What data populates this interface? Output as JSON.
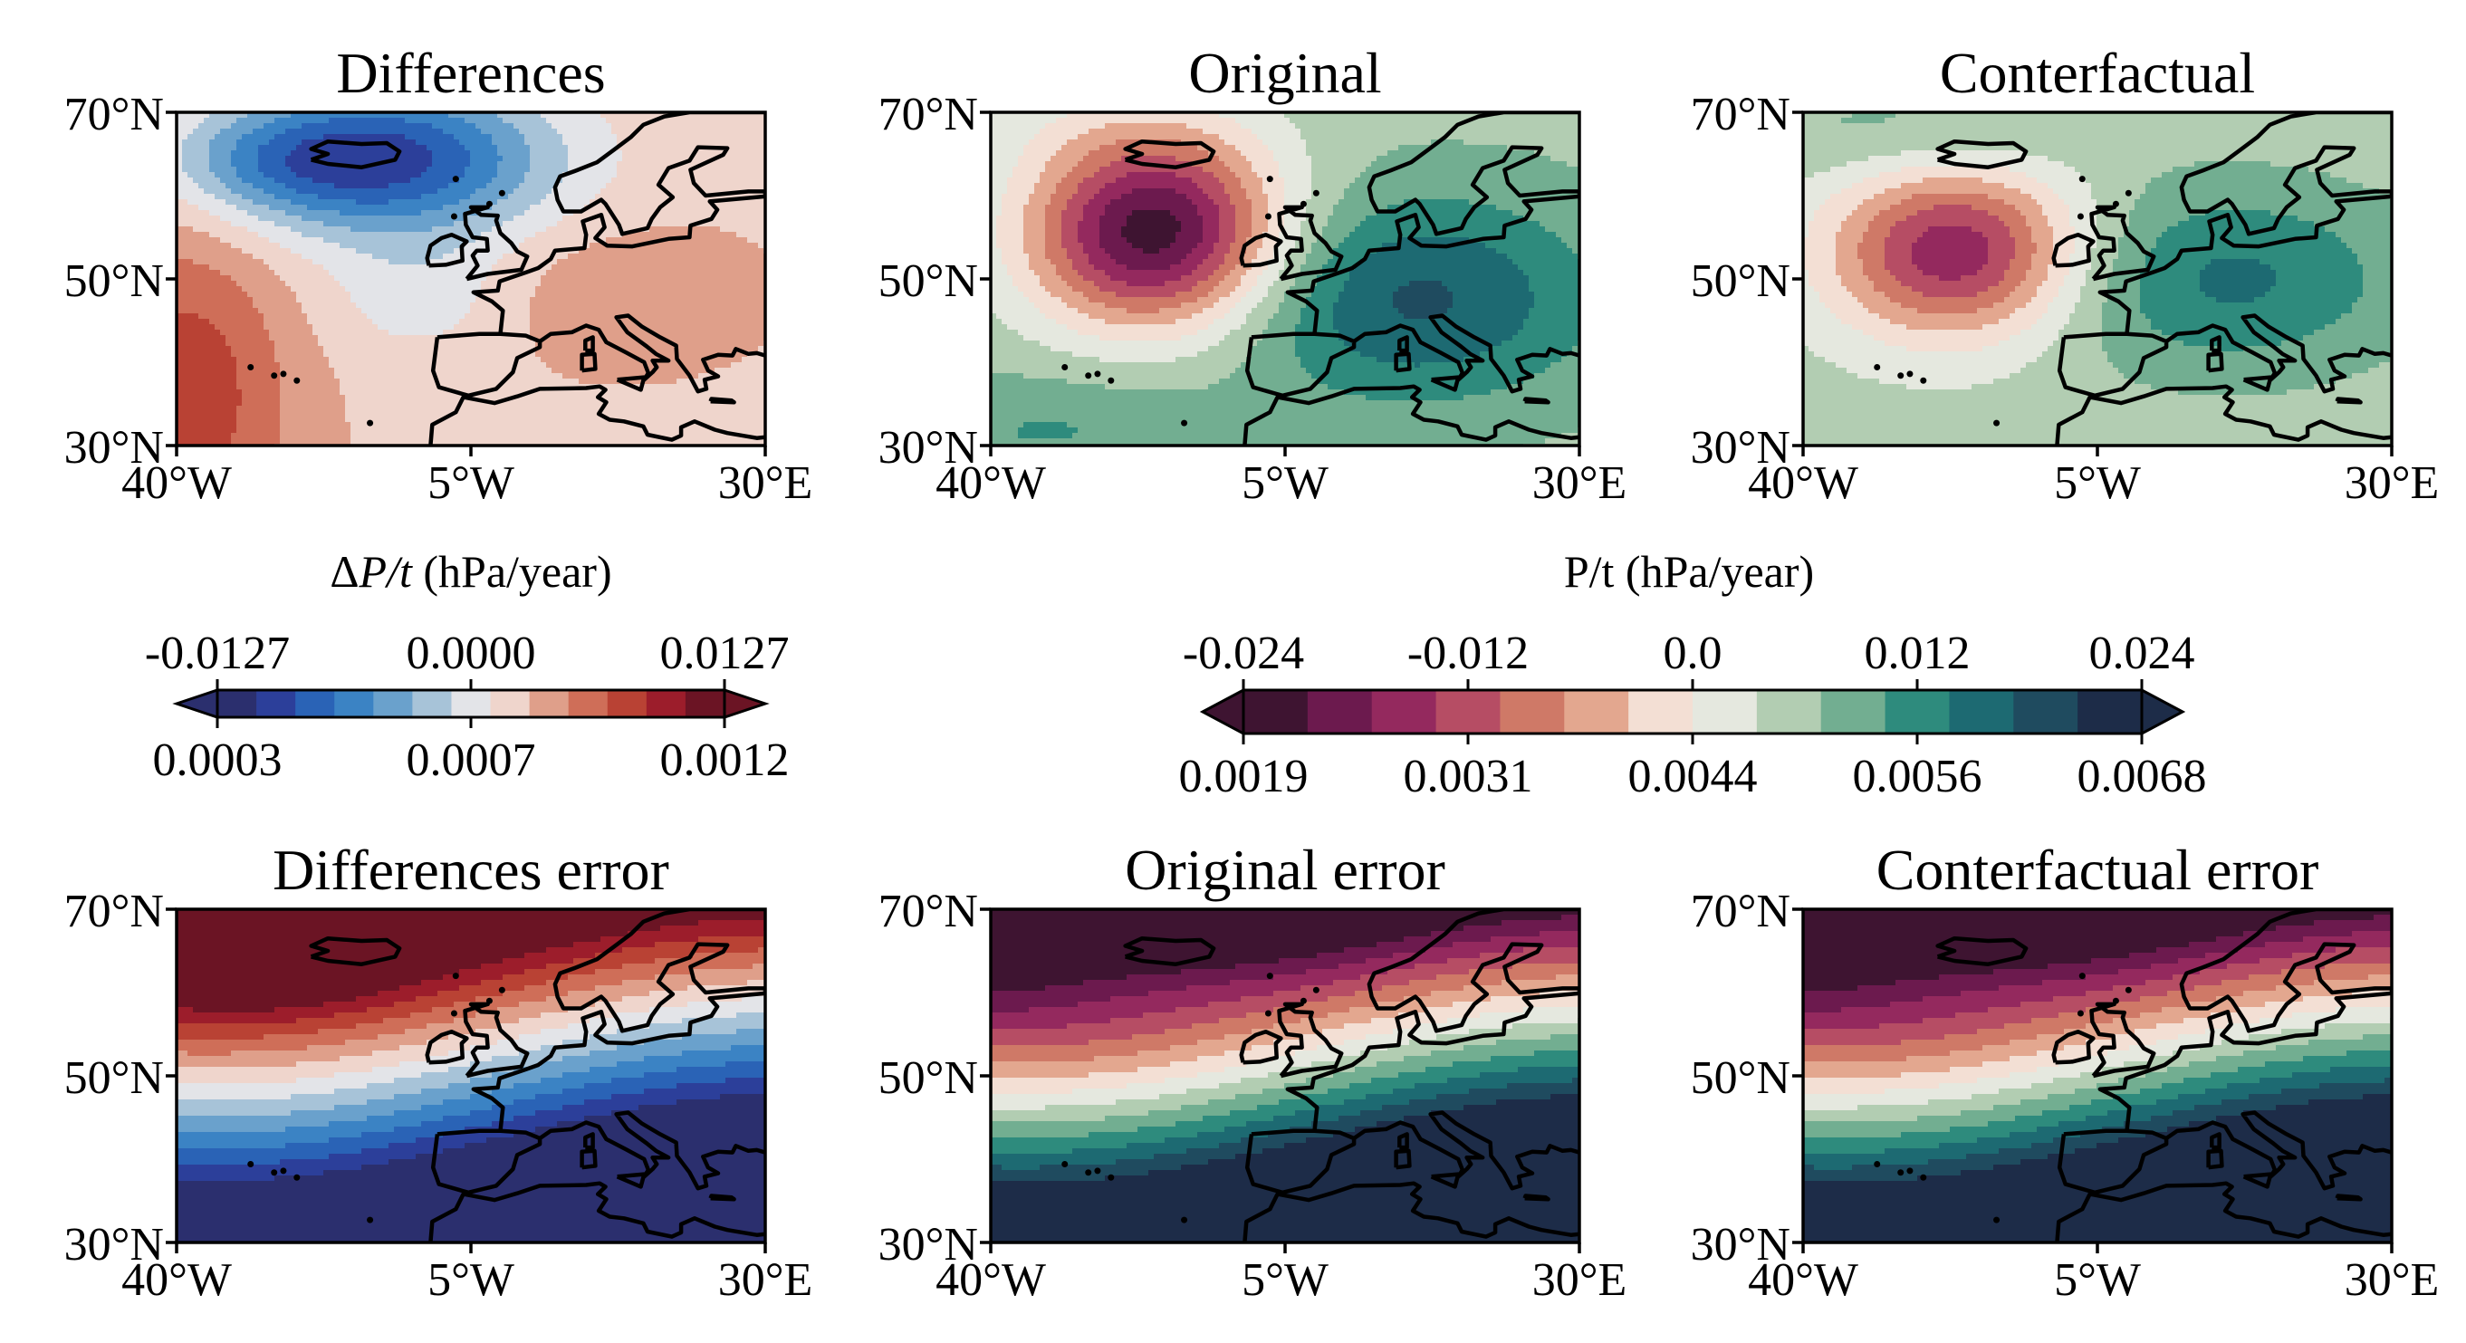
{
  "figure": {
    "panels": [
      {
        "id": "differences",
        "title": "Differences",
        "palette": "diverging",
        "pattern": "diff"
      },
      {
        "id": "original",
        "title": "Original",
        "palette": "curl",
        "pattern": "orig"
      },
      {
        "id": "conterfactual",
        "title": "Conterfactual",
        "palette": "curl",
        "pattern": "cf"
      },
      {
        "id": "differences-error",
        "title": "Differences error",
        "palette": "diverging",
        "pattern": "differr"
      },
      {
        "id": "original-error",
        "title": "Original error",
        "palette": "curl",
        "pattern": "err"
      },
      {
        "id": "conterfactual-error",
        "title": "Conterfactual error",
        "palette": "curl",
        "pattern": "err"
      }
    ],
    "lat_ticks": [
      "70°N",
      "50°N",
      "30°N"
    ],
    "lon_ticks": [
      "40°W",
      "5°W",
      "30°E"
    ],
    "extent": {
      "lon": [
        -40,
        30
      ],
      "lat": [
        30,
        70
      ]
    }
  },
  "colorbars": {
    "diff": {
      "label_prefix": "Δ",
      "label_var": "P/t",
      "label_unit": " (hPa/year)",
      "top_ticks": [
        "-0.0127",
        "0.0000",
        "0.0127"
      ],
      "bottom_ticks": [
        "0.0003",
        "0.0007",
        "0.0012"
      ],
      "colors": [
        "#2b2f6e",
        "#2c3f9a",
        "#2a63b6",
        "#3b83c4",
        "#6aa1cc",
        "#a7c3d8",
        "#e3e4e8",
        "#efd5cc",
        "#df9f8a",
        "#cf6e58",
        "#b94234",
        "#9c1d2b",
        "#6b1424"
      ]
    },
    "main": {
      "label": "P/t (hPa/year)",
      "top_ticks": [
        "-0.024",
        "-0.012",
        "0.0",
        "0.012",
        "0.024"
      ],
      "bottom_ticks": [
        "0.0019",
        "0.0031",
        "0.0044",
        "0.0056",
        "0.0068"
      ],
      "colors": [
        "#3e1431",
        "#6c1a4e",
        "#94295e",
        "#b64d64",
        "#cf7967",
        "#e3a78f",
        "#f3dfd4",
        "#e5e8df",
        "#b2cdb2",
        "#72ae91",
        "#2e8b7d",
        "#1d6a72",
        "#1f4b5f",
        "#1d2c48"
      ]
    }
  }
}
